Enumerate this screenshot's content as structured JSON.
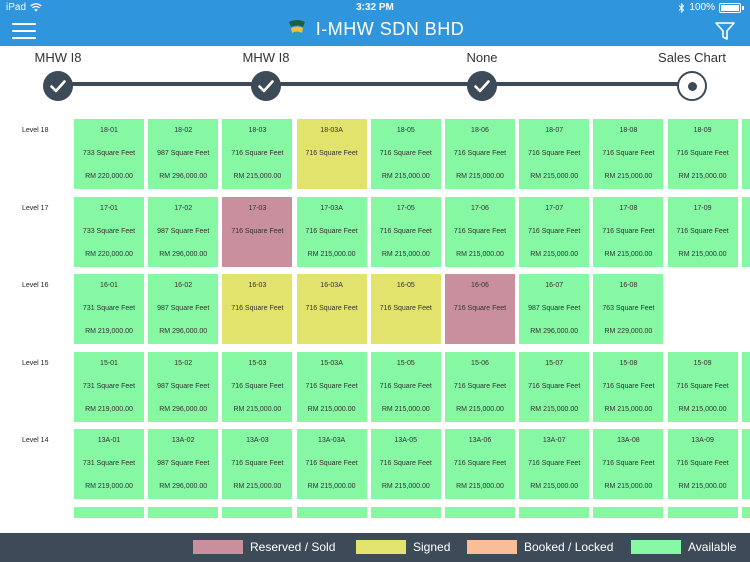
{
  "status_bar": {
    "device": "iPad",
    "time": "3:32 PM",
    "battery": "100%"
  },
  "header": {
    "title": "I-MHW SDN BHD"
  },
  "colors": {
    "header": "#2f95dc",
    "stepper": "#3d4a57",
    "reserved": "#c98f9c",
    "signed": "#e2e36d",
    "booked": "#f9be97",
    "available": "#86f7a3"
  },
  "steps": [
    {
      "label": "MHW I8",
      "state": "done"
    },
    {
      "label": "MHW I8",
      "state": "done"
    },
    {
      "label": "None",
      "state": "done"
    },
    {
      "label": "Sales Chart",
      "state": "current"
    }
  ],
  "levels": [
    {
      "label": "Level 18",
      "units": [
        {
          "no": "18-01",
          "size": "733 Square Feet",
          "price": "RM 220,000.00",
          "status": "available"
        },
        {
          "no": "18-02",
          "size": "987 Square Feet",
          "price": "RM 296,000.00",
          "status": "available"
        },
        {
          "no": "18-03",
          "size": "716 Square Feet",
          "price": "RM 215,000.00",
          "status": "available"
        },
        {
          "no": "18-03A",
          "size": "716 Square Feet",
          "price": "",
          "status": "signed"
        },
        {
          "no": "18-05",
          "size": "716 Square Feet",
          "price": "RM 215,000.00",
          "status": "available"
        },
        {
          "no": "18-06",
          "size": "716 Square Feet",
          "price": "RM 215,000.00",
          "status": "available"
        },
        {
          "no": "18-07",
          "size": "716 Square Feet",
          "price": "RM 215,000.00",
          "status": "available"
        },
        {
          "no": "18-08",
          "size": "716 Square Feet",
          "price": "RM 215,000.00",
          "status": "available"
        },
        {
          "no": "18-09",
          "size": "716 Square Feet",
          "price": "RM 215,000.00",
          "status": "available"
        },
        {
          "no": "",
          "size": "",
          "price": "",
          "status": "available"
        }
      ]
    },
    {
      "label": "Level 17",
      "units": [
        {
          "no": "17-01",
          "size": "733 Square Feet",
          "price": "RM 220,000.00",
          "status": "available"
        },
        {
          "no": "17-02",
          "size": "987 Square Feet",
          "price": "RM 296,000.00",
          "status": "available"
        },
        {
          "no": "17-03",
          "size": "716 Square Feet",
          "price": "",
          "status": "reserved"
        },
        {
          "no": "17-03A",
          "size": "716 Square Feet",
          "price": "RM 215,000.00",
          "status": "available"
        },
        {
          "no": "17-05",
          "size": "716 Square Feet",
          "price": "RM 215,000.00",
          "status": "available"
        },
        {
          "no": "17-06",
          "size": "716 Square Feet",
          "price": "RM 215,000.00",
          "status": "available"
        },
        {
          "no": "17-07",
          "size": "716 Square Feet",
          "price": "RM 215,000.00",
          "status": "available"
        },
        {
          "no": "17-08",
          "size": "716 Square Feet",
          "price": "RM 215,000.00",
          "status": "available"
        },
        {
          "no": "17-09",
          "size": "716 Square Feet",
          "price": "RM 215,000.00",
          "status": "available"
        },
        {
          "no": "",
          "size": "",
          "price": "",
          "status": "available"
        }
      ]
    },
    {
      "label": "Level 16",
      "units": [
        {
          "no": "16-01",
          "size": "731 Square Feet",
          "price": "RM 219,000.00",
          "status": "available"
        },
        {
          "no": "16-02",
          "size": "987 Square Feet",
          "price": "RM 296,000.00",
          "status": "available"
        },
        {
          "no": "16-03",
          "size": "716 Square Feet",
          "price": "",
          "status": "signed"
        },
        {
          "no": "16-03A",
          "size": "716 Square Feet",
          "price": "",
          "status": "signed"
        },
        {
          "no": "16-05",
          "size": "716 Square Feet",
          "price": "",
          "status": "signed"
        },
        {
          "no": "16-06",
          "size": "716 Square Feet",
          "price": "",
          "status": "reserved"
        },
        {
          "no": "16-07",
          "size": "987 Square Feet",
          "price": "RM 296,000.00",
          "status": "available"
        },
        {
          "no": "16-08",
          "size": "763 Square Feet",
          "price": "RM 229,000.00",
          "status": "available"
        }
      ]
    },
    {
      "label": "Level 15",
      "units": [
        {
          "no": "15-01",
          "size": "731 Square Feet",
          "price": "RM 219,000.00",
          "status": "available"
        },
        {
          "no": "15-02",
          "size": "987 Square Feet",
          "price": "RM 296,000.00",
          "status": "available"
        },
        {
          "no": "15-03",
          "size": "716 Square Feet",
          "price": "RM 215,000.00",
          "status": "available"
        },
        {
          "no": "15-03A",
          "size": "716 Square Feet",
          "price": "RM 215,000.00",
          "status": "available"
        },
        {
          "no": "15-05",
          "size": "716 Square Feet",
          "price": "RM 215,000.00",
          "status": "available"
        },
        {
          "no": "15-06",
          "size": "716 Square Feet",
          "price": "RM 215,000.00",
          "status": "available"
        },
        {
          "no": "15-07",
          "size": "716 Square Feet",
          "price": "RM 215,000.00",
          "status": "available"
        },
        {
          "no": "15-08",
          "size": "716 Square Feet",
          "price": "RM 215,000.00",
          "status": "available"
        },
        {
          "no": "15-09",
          "size": "716 Square Feet",
          "price": "RM 215,000.00",
          "status": "available"
        },
        {
          "no": "",
          "size": "",
          "price": "",
          "status": "available"
        }
      ]
    },
    {
      "label": "Level 14",
      "units": [
        {
          "no": "13A-01",
          "size": "731 Square Feet",
          "price": "RM 219,000.00",
          "status": "available"
        },
        {
          "no": "13A-02",
          "size": "987 Square Feet",
          "price": "RM 296,000.00",
          "status": "available"
        },
        {
          "no": "13A-03",
          "size": "716 Square Feet",
          "price": "RM 215,000.00",
          "status": "available"
        },
        {
          "no": "13A-03A",
          "size": "716 Square Feet",
          "price": "RM 215,000.00",
          "status": "available"
        },
        {
          "no": "13A-05",
          "size": "716 Square Feet",
          "price": "RM 215,000.00",
          "status": "available"
        },
        {
          "no": "13A-06",
          "size": "716 Square Feet",
          "price": "RM 215,000.00",
          "status": "available"
        },
        {
          "no": "13A-07",
          "size": "716 Square Feet",
          "price": "RM 215,000.00",
          "status": "available"
        },
        {
          "no": "13A-08",
          "size": "716 Square Feet",
          "price": "RM 215,000.00",
          "status": "available"
        },
        {
          "no": "13A-09",
          "size": "716 Square Feet",
          "price": "RM 215,000.00",
          "status": "available"
        },
        {
          "no": "",
          "size": "",
          "price": "",
          "status": "available"
        }
      ]
    },
    {
      "label": "",
      "units": [
        {
          "no": "",
          "size": "",
          "price": "",
          "status": "available"
        },
        {
          "no": "",
          "size": "",
          "price": "",
          "status": "available"
        },
        {
          "no": "",
          "size": "",
          "price": "",
          "status": "available"
        },
        {
          "no": "",
          "size": "",
          "price": "",
          "status": "available"
        },
        {
          "no": "",
          "size": "",
          "price": "",
          "status": "available"
        },
        {
          "no": "",
          "size": "",
          "price": "",
          "status": "available"
        },
        {
          "no": "",
          "size": "",
          "price": "",
          "status": "available"
        },
        {
          "no": "",
          "size": "",
          "price": "",
          "status": "available"
        },
        {
          "no": "",
          "size": "",
          "price": "",
          "status": "available"
        },
        {
          "no": "",
          "size": "",
          "price": "",
          "status": "available"
        }
      ]
    }
  ],
  "legend": [
    {
      "label": "Reserved / Sold",
      "status": "reserved"
    },
    {
      "label": "Signed",
      "status": "signed"
    },
    {
      "label": "Booked / Locked",
      "status": "booked"
    },
    {
      "label": "Available",
      "status": "available"
    }
  ]
}
